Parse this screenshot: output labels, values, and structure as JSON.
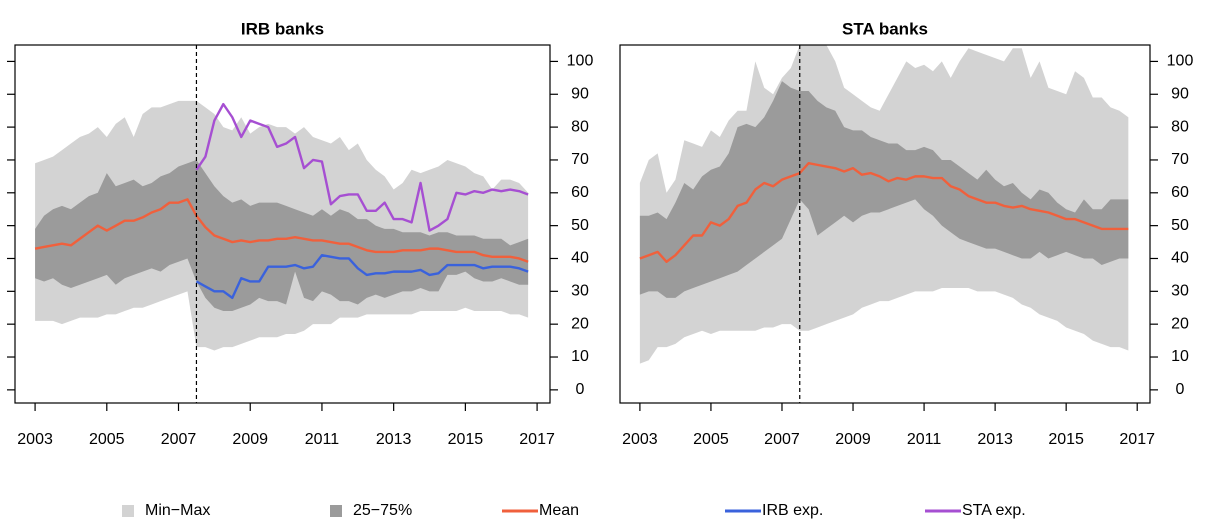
{
  "chart_data": [
    {
      "type": "band-line",
      "title": "IRB banks",
      "x": [
        2003,
        2003.25,
        2003.5,
        2003.75,
        2004,
        2004.25,
        2004.5,
        2004.75,
        2005,
        2005.25,
        2005.5,
        2005.75,
        2006,
        2006.25,
        2006.5,
        2006.75,
        2007,
        2007.25,
        2007.5,
        2007.75,
        2008,
        2008.25,
        2008.5,
        2008.75,
        2009,
        2009.25,
        2009.5,
        2009.75,
        2010,
        2010.25,
        2010.5,
        2010.75,
        2011,
        2011.25,
        2011.5,
        2011.75,
        2012,
        2012.25,
        2012.5,
        2012.75,
        2013,
        2013.25,
        2013.5,
        2013.75,
        2014,
        2014.25,
        2014.5,
        2014.75,
        2015,
        2015.25,
        2015.5,
        2015.75,
        2016,
        2016.25,
        2016.5,
        2016.75
      ],
      "xlim": [
        2002.44,
        2017.36
      ],
      "xticks": [
        2003,
        2005,
        2007,
        2009,
        2011,
        2013,
        2015,
        2017
      ],
      "ylim": [
        -4,
        105
      ],
      "yticks": [
        0,
        10,
        20,
        30,
        40,
        50,
        60,
        70,
        80,
        90,
        100
      ],
      "ytick_sides": [
        "left",
        "right"
      ],
      "ytick_label_side": "right",
      "vline": 2007.5,
      "series": [
        {
          "name": "Min−Max",
          "color": "#d3d3d3",
          "upper": [
            69,
            70,
            71,
            73,
            75,
            77,
            78,
            80,
            77,
            81,
            83,
            77,
            84,
            86,
            86,
            87,
            88,
            88,
            88,
            86,
            84,
            80,
            79,
            83,
            78,
            80,
            81,
            80,
            80,
            78,
            80,
            77,
            76,
            75,
            77,
            73,
            75,
            70,
            67,
            65,
            61,
            63,
            67,
            66,
            67,
            68,
            70,
            69,
            68,
            66,
            65,
            61,
            64,
            64,
            63,
            60
          ],
          "lower": [
            21,
            21,
            21,
            20,
            21,
            22,
            22,
            22,
            23,
            23,
            24,
            25,
            25,
            26,
            27,
            28,
            29,
            30,
            13,
            13,
            12,
            13,
            13,
            14,
            15,
            16,
            16,
            16,
            17,
            17,
            18,
            20,
            20,
            20,
            22,
            22,
            22,
            23,
            23,
            23,
            23,
            23,
            23,
            24,
            24,
            24,
            24,
            24,
            25,
            24,
            24,
            24,
            24,
            23,
            23,
            22
          ]
        },
        {
          "name": "25−75%",
          "color": "#9b9b9b",
          "upper": [
            49,
            53,
            55,
            56,
            55,
            57,
            59,
            60,
            66,
            62,
            63,
            64,
            62,
            63,
            65,
            66,
            68,
            69,
            70,
            66,
            62,
            59,
            57,
            58,
            56,
            57,
            57,
            57,
            56,
            55,
            54,
            53,
            55,
            53,
            55,
            54,
            52,
            52,
            50,
            49,
            49,
            48,
            48,
            48,
            47,
            48,
            48,
            47,
            47,
            47,
            46,
            46,
            46,
            44,
            45,
            46
          ],
          "lower": [
            34,
            33,
            34,
            32,
            31,
            32,
            33,
            34,
            35,
            32,
            34,
            35,
            36,
            37,
            36,
            38,
            39,
            40,
            33,
            28,
            25,
            24,
            24,
            25,
            26,
            28,
            27,
            27,
            26,
            36,
            28,
            27,
            30,
            29,
            27,
            27,
            26,
            28,
            29,
            28,
            29,
            30,
            30,
            31,
            30,
            30,
            35,
            35,
            36,
            34,
            33,
            33,
            34,
            33,
            32,
            32
          ]
        },
        {
          "name": "Mean",
          "color": "#f0603c",
          "values": [
            43,
            43.5,
            44,
            44.5,
            44,
            46,
            48,
            50,
            48.5,
            50,
            51.5,
            51.5,
            52.5,
            54,
            55,
            57,
            57,
            58,
            53,
            49.5,
            47,
            46,
            45,
            45.5,
            45,
            45.5,
            45.5,
            46,
            46,
            46.5,
            46,
            45.5,
            45.5,
            45,
            44.5,
            44.5,
            43.5,
            42.5,
            42,
            42,
            42,
            42.5,
            42.5,
            42.5,
            43,
            43,
            42.5,
            42,
            42,
            42,
            41,
            40.5,
            40.5,
            40.5,
            40,
            39
          ]
        },
        {
          "name": "IRB exp.",
          "color": "#3a62dc",
          "values": [
            null,
            null,
            null,
            null,
            null,
            null,
            null,
            null,
            null,
            null,
            null,
            null,
            null,
            null,
            null,
            null,
            null,
            null,
            33,
            31.5,
            30,
            30,
            28,
            34,
            33,
            33,
            37.5,
            37.5,
            37.5,
            38,
            37,
            37.5,
            41,
            40.5,
            40,
            40,
            37,
            35,
            35.5,
            35.5,
            36,
            36,
            36,
            36.5,
            35,
            35.5,
            38,
            38,
            38,
            38,
            37,
            37.5,
            37.5,
            37.5,
            37,
            36
          ]
        },
        {
          "name": "STA exp.",
          "color": "#a64fd2",
          "values": [
            null,
            null,
            null,
            null,
            null,
            null,
            null,
            null,
            null,
            null,
            null,
            null,
            null,
            null,
            null,
            null,
            null,
            null,
            67,
            71,
            82,
            87,
            83,
            77,
            82,
            81,
            80,
            74,
            75,
            77,
            67.5,
            70,
            69.5,
            56.5,
            59,
            59.5,
            59.5,
            54.5,
            54.5,
            57,
            52,
            52,
            51,
            63,
            48.5,
            50,
            52,
            60,
            59.5,
            60.5,
            60,
            61,
            60.5,
            61,
            60.5,
            59.5
          ]
        }
      ]
    },
    {
      "type": "band-line",
      "title": "STA banks",
      "x": [
        2003,
        2003.25,
        2003.5,
        2003.75,
        2004,
        2004.25,
        2004.5,
        2004.75,
        2005,
        2005.25,
        2005.5,
        2005.75,
        2006,
        2006.25,
        2006.5,
        2006.75,
        2007,
        2007.25,
        2007.5,
        2007.75,
        2008,
        2008.25,
        2008.5,
        2008.75,
        2009,
        2009.25,
        2009.5,
        2009.75,
        2010,
        2010.25,
        2010.5,
        2010.75,
        2011,
        2011.25,
        2011.5,
        2011.75,
        2012,
        2012.25,
        2012.5,
        2012.75,
        2013,
        2013.25,
        2013.5,
        2013.75,
        2014,
        2014.25,
        2014.5,
        2014.75,
        2015,
        2015.25,
        2015.5,
        2015.75,
        2016,
        2016.25,
        2016.5,
        2016.75
      ],
      "xlim": [
        2002.44,
        2017.36
      ],
      "xticks": [
        2003,
        2005,
        2007,
        2009,
        2011,
        2013,
        2015,
        2017
      ],
      "ylim": [
        -4,
        105
      ],
      "yticks": [
        0,
        10,
        20,
        30,
        40,
        50,
        60,
        70,
        80,
        90,
        100
      ],
      "ytick_sides": [
        "right"
      ],
      "ytick_label_side": "right",
      "vline": 2007.5,
      "series": [
        {
          "color": "#d3d3d3",
          "upper": [
            63,
            70,
            72,
            60,
            64,
            76,
            75,
            74,
            79,
            77,
            82,
            85,
            85,
            100,
            92,
            90,
            95,
            98,
            105,
            105,
            105,
            105,
            100,
            92,
            90,
            88,
            86,
            85,
            90,
            95,
            100,
            98,
            99,
            97,
            100,
            95,
            100,
            104,
            103,
            102,
            101,
            100,
            104,
            104,
            95,
            100,
            92,
            91,
            90,
            97,
            95,
            89,
            89,
            86,
            85,
            83
          ],
          "lower": [
            8,
            9,
            13,
            13,
            14,
            16,
            17,
            18,
            17,
            18,
            18,
            18,
            18,
            18,
            19,
            19,
            20,
            20,
            18,
            18,
            19,
            20,
            21,
            22,
            23,
            25,
            26,
            27,
            27,
            28,
            29,
            30,
            30,
            30,
            31,
            31,
            31,
            31,
            30,
            30,
            30,
            29,
            28,
            26,
            25,
            23,
            22,
            21,
            19,
            18,
            17,
            15,
            14,
            13,
            13,
            12
          ]
        },
        {
          "color": "#9b9b9b",
          "upper": [
            53,
            53,
            54,
            52,
            57,
            63,
            61,
            65,
            67,
            68,
            72,
            80,
            81,
            80,
            83,
            88,
            94,
            92,
            91,
            91,
            88,
            86,
            85,
            80,
            79,
            79,
            77,
            76,
            75,
            75,
            73,
            73,
            74,
            73,
            70,
            70,
            68,
            66,
            64,
            67,
            64,
            62,
            63,
            60,
            58,
            61,
            60,
            57,
            55,
            54,
            58,
            55,
            55,
            58,
            58,
            58
          ],
          "lower": [
            29,
            30,
            30,
            28,
            28,
            30,
            31,
            32,
            33,
            34,
            35,
            36,
            38,
            40,
            42,
            44,
            46,
            52,
            58,
            55,
            47,
            49,
            51,
            53,
            51,
            53,
            54,
            54,
            55,
            56,
            57,
            58,
            55,
            53,
            50,
            48,
            46,
            45,
            44,
            43,
            43,
            42,
            41,
            40,
            40,
            42,
            40,
            41,
            42,
            41,
            40,
            40,
            38,
            39,
            40,
            40
          ]
        },
        {
          "color": "#f0603c",
          "values": [
            40,
            41,
            42,
            39,
            41,
            44,
            47,
            47,
            51,
            50,
            52,
            56,
            57,
            61,
            63,
            62,
            64,
            65,
            66,
            69,
            68.5,
            68,
            67.5,
            66.5,
            67.5,
            65.5,
            66,
            65,
            63.5,
            64.5,
            64,
            65,
            65,
            64.5,
            64.5,
            62,
            61,
            59,
            58,
            57,
            57,
            56,
            55.5,
            56,
            55,
            54.5,
            54,
            53,
            52,
            52,
            51,
            50,
            49,
            49,
            49,
            49
          ]
        }
      ]
    }
  ]
}
